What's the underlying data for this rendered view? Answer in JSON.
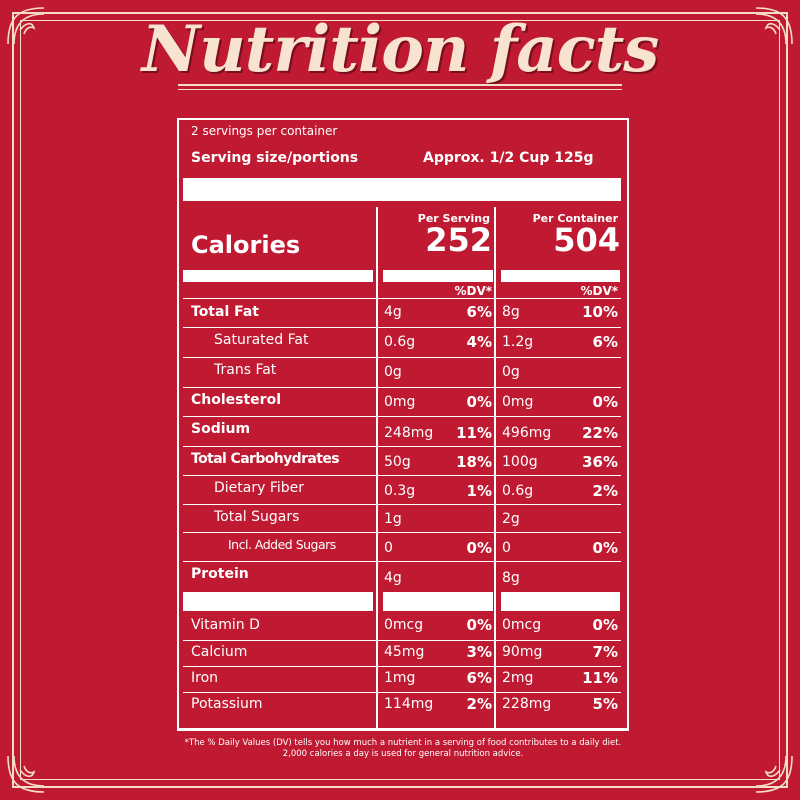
{
  "title": "Nutrition facts",
  "colors": {
    "background": "#c01a32",
    "ink": "#ffffff",
    "title": "#f7e3cf"
  },
  "label": {
    "servings_per_container": "2 servings per container",
    "serving_size_label": "Serving size/portions",
    "serving_size_value": "Approx. 1/2 Cup 125g",
    "calories_label": "Calories",
    "per_serving_label": "Per Serving",
    "per_container_label": "Per Container",
    "calories_per_serving": "252",
    "calories_per_container": "504",
    "dv_header": "%DV*",
    "rows": [
      {
        "name": "Total Fat",
        "serving": "4g",
        "serving_dv": "6%",
        "container": "8g",
        "container_dv": "10%"
      },
      {
        "name": "Saturated Fat",
        "serving": "0.6g",
        "serving_dv": "4%",
        "container": "1.2g",
        "container_dv": "6%"
      },
      {
        "name": "Trans Fat",
        "serving": "0g",
        "serving_dv": "",
        "container": "0g",
        "container_dv": ""
      },
      {
        "name": "Cholesterol",
        "serving": "0mg",
        "serving_dv": "0%",
        "container": "0mg",
        "container_dv": "0%"
      },
      {
        "name": "Sodium",
        "serving": "248mg",
        "serving_dv": "11%",
        "container": "496mg",
        "container_dv": "22%"
      },
      {
        "name": "Total Carbohydrates",
        "serving": "50g",
        "serving_dv": "18%",
        "container": "100g",
        "container_dv": "36%"
      },
      {
        "name": "Dietary Fiber",
        "serving": "0.3g",
        "serving_dv": "1%",
        "container": "0.6g",
        "container_dv": "2%"
      },
      {
        "name": "Total Sugars",
        "serving": "1g",
        "serving_dv": "",
        "container": "2g",
        "container_dv": ""
      },
      {
        "name": "Incl. Added Sugars",
        "serving": "0",
        "serving_dv": "0%",
        "container": "0",
        "container_dv": "0%"
      },
      {
        "name": "Protein",
        "serving": "4g",
        "serving_dv": "",
        "container": "8g",
        "container_dv": ""
      }
    ],
    "vitamins": [
      {
        "name": "Vitamin D",
        "serving": "0mcg",
        "serving_dv": "0%",
        "container": "0mcg",
        "container_dv": "0%"
      },
      {
        "name": "Calcium",
        "serving": "45mg",
        "serving_dv": "3%",
        "container": "90mg",
        "container_dv": "7%"
      },
      {
        "name": "Iron",
        "serving": "1mg",
        "serving_dv": "6%",
        "container": "2mg",
        "container_dv": "11%"
      },
      {
        "name": "Potassium",
        "serving": "114mg",
        "serving_dv": "2%",
        "container": "228mg",
        "container_dv": "5%"
      }
    ],
    "footnote": "*The % Daily Values (DV) tells you how much a nutrient in a serving of food contributes to a daily diet. 2,000 calories a day is used for general nutrition advice."
  }
}
